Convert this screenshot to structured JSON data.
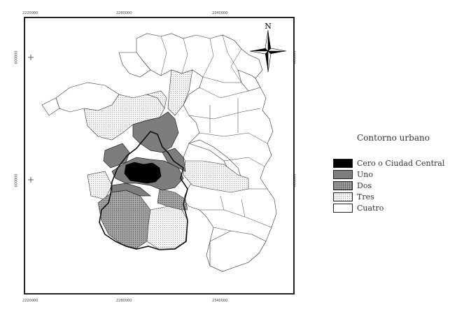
{
  "axes": {
    "top": [
      "2220000",
      "2280000",
      "2340000"
    ],
    "bottom": [
      "2220000",
      "2280000",
      "2340000"
    ],
    "left": [
      "600000",
      "600000"
    ],
    "right": [
      "600000",
      "600000"
    ]
  },
  "north_label": "N",
  "legend": {
    "title": "Contorno urbano",
    "items": [
      {
        "label": "Cero o Ciudad Central",
        "pattern": "black"
      },
      {
        "label": "Uno",
        "pattern": "dark-gray"
      },
      {
        "label": "Dos",
        "pattern": "dotted-gray"
      },
      {
        "label": "Tres",
        "pattern": "light-dotted"
      },
      {
        "label": "Cuatro",
        "pattern": "white"
      }
    ]
  },
  "colors": {
    "black": "#000000",
    "dark_gray": "#7d7d7d",
    "dotted_gray_base": "#a6a6a6",
    "light_dotted_base": "#f2f2f2",
    "white": "#ffffff",
    "border": "#222222"
  }
}
